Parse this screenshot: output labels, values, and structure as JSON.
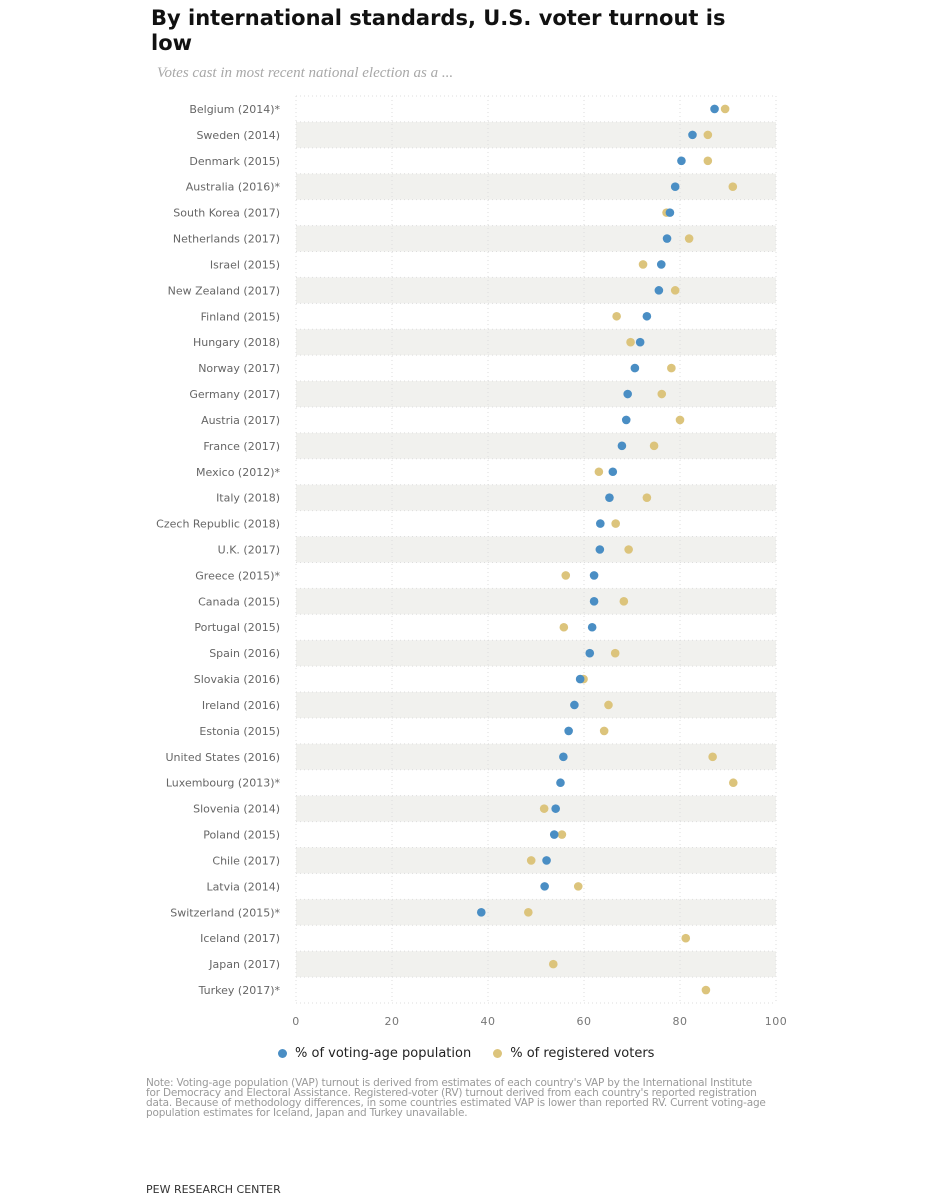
{
  "header": {
    "title": "By international standards, U.S. voter turnout is low",
    "subtitle": "Votes cast in most recent national election as a ..."
  },
  "colors": {
    "vap": "#4a8ec4",
    "rv": "#dcc47c",
    "band": "#f1f1ee",
    "grid": "#dddddd"
  },
  "legend": [
    {
      "key": "vap",
      "label": "% of voting-age population"
    },
    {
      "key": "rv",
      "label": "% of registered voters"
    }
  ],
  "note": "Note: Voting-age population (VAP) turnout is derived from estimates of each country's VAP by the International Institute for Democracy and Electoral Assistance. Registered-voter (RV) turnout derived from each country's reported registration data. Because of methodology differences, in some countries estimated VAP is lower than reported RV. Current voting-age population estimates for Iceland, Japan and Turkey unavailable.",
  "source": "PEW RESEARCH CENTER",
  "chart_data": {
    "type": "scatter",
    "subtype": "dot-plot",
    "title": "By international standards, U.S. voter turnout is low",
    "subtitle": "Votes cast in most recent national election as a ...",
    "xlabel": "",
    "ylabel": "",
    "xlim": [
      0,
      100
    ],
    "xticks": [
      0,
      20,
      40,
      60,
      80,
      100
    ],
    "grid": true,
    "legend_position": "bottom",
    "categories": [
      "Belgium (2014)*",
      "Sweden (2014)",
      "Denmark (2015)",
      "Australia (2016)*",
      "South Korea (2017)",
      "Netherlands (2017)",
      "Israel (2015)",
      "New Zealand (2017)",
      "Finland (2015)",
      "Hungary (2018)",
      "Norway (2017)",
      "Germany (2017)",
      "Austria (2017)",
      "France (2017)",
      "Mexico (2012)*",
      "Italy (2018)",
      "Czech Republic (2018)",
      "U.K. (2017)",
      "Greece (2015)*",
      "Canada (2015)",
      "Portugal (2015)",
      "Spain (2016)",
      "Slovakia (2016)",
      "Ireland (2016)",
      "Estonia (2015)",
      "United States (2016)",
      "Luxembourg (2013)*",
      "Slovenia (2014)",
      "Poland (2015)",
      "Chile (2017)",
      "Latvia (2014)",
      "Switzerland (2015)*",
      "Iceland (2017)",
      "Japan (2017)",
      "Turkey (2017)*"
    ],
    "series": [
      {
        "name": "% of voting-age population",
        "key": "vap",
        "values": [
          87.2,
          82.6,
          80.3,
          79.0,
          77.9,
          77.3,
          76.1,
          75.6,
          73.1,
          71.7,
          70.6,
          69.1,
          68.8,
          67.9,
          66.0,
          65.3,
          63.4,
          63.3,
          62.1,
          62.1,
          61.7,
          61.2,
          59.2,
          58.0,
          56.8,
          55.7,
          55.1,
          54.1,
          53.8,
          52.2,
          51.8,
          38.6,
          null,
          null,
          null
        ]
      },
      {
        "name": "% of registered voters",
        "key": "rv",
        "values": [
          89.4,
          85.8,
          85.8,
          91.0,
          77.2,
          81.9,
          72.3,
          79.0,
          66.8,
          69.7,
          78.2,
          76.2,
          80.0,
          74.6,
          63.1,
          73.1,
          66.6,
          69.3,
          56.2,
          68.3,
          55.8,
          66.5,
          59.9,
          65.1,
          64.2,
          86.8,
          91.1,
          51.7,
          55.4,
          49.0,
          58.8,
          48.4,
          81.2,
          53.6,
          85.4
        ]
      }
    ]
  }
}
